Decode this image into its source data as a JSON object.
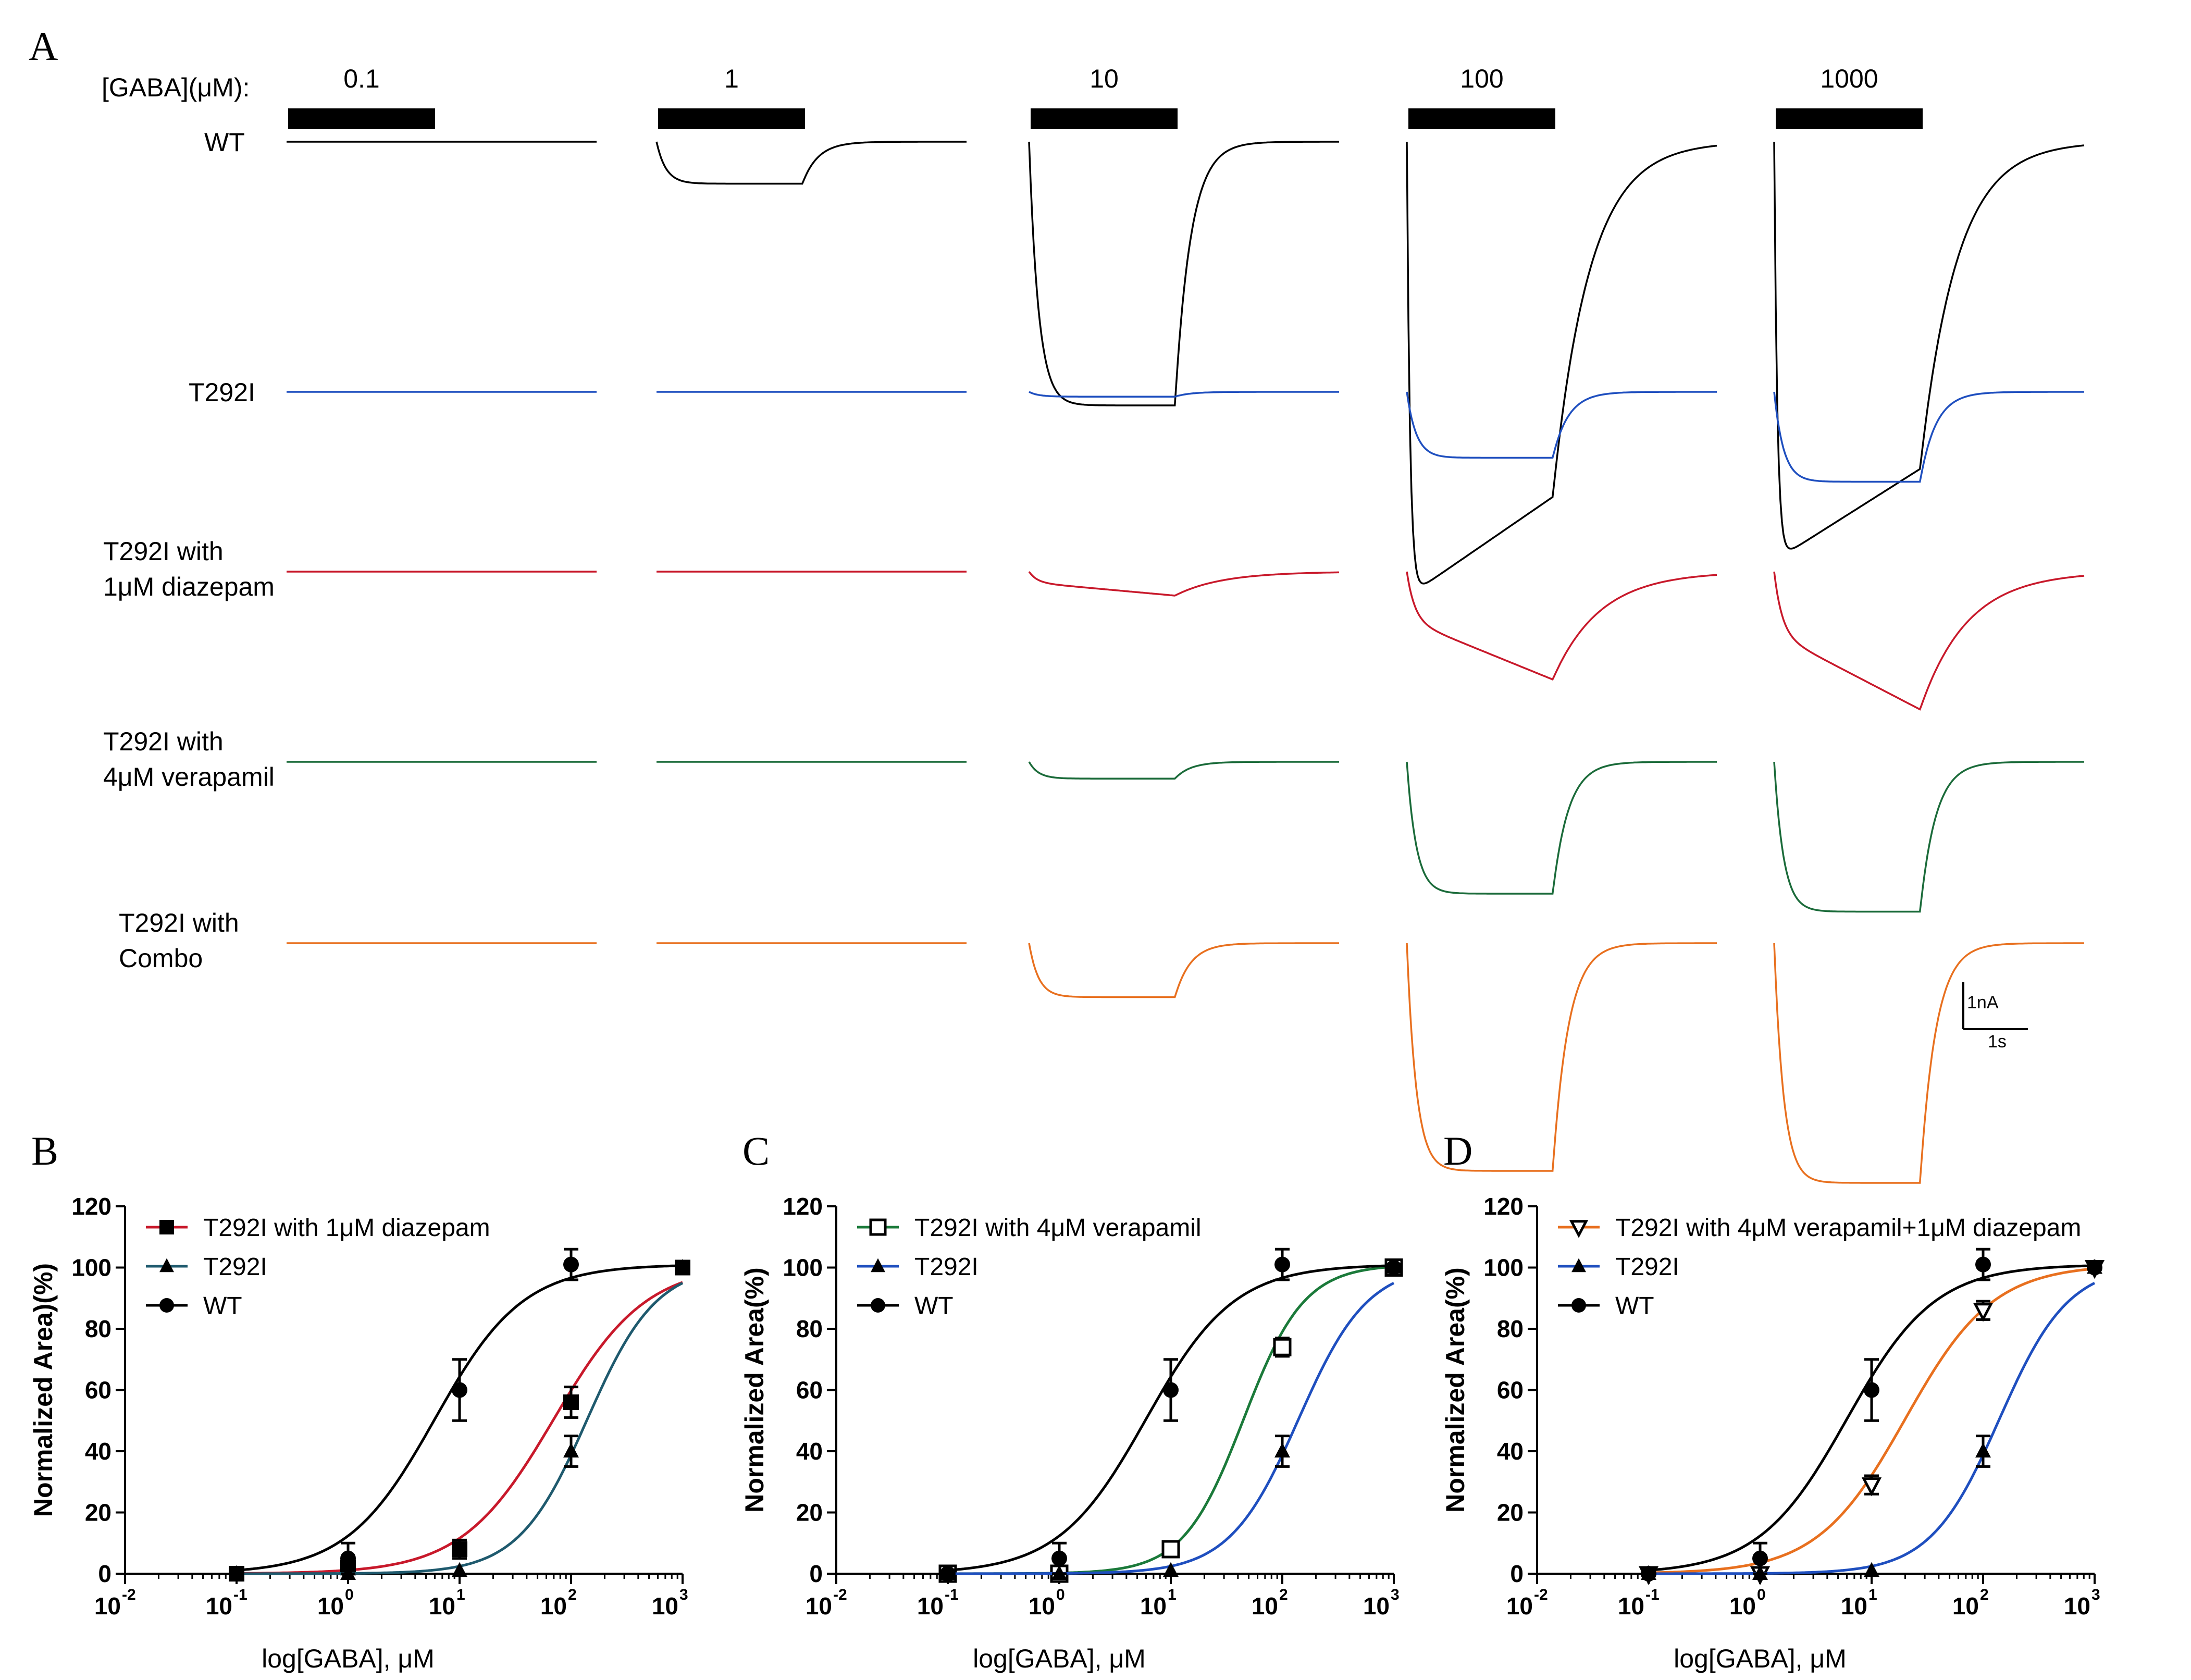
{
  "panel_a": {
    "letter": "A",
    "conc_title": "[GABA](μM):",
    "concentrations": [
      "0.1",
      "1",
      "10",
      "100",
      "1000"
    ],
    "rows": [
      {
        "lines": [
          "WT"
        ],
        "color": "#000000",
        "amps": [
          0,
          0.035,
          0.22,
          0.38,
          0.35
        ],
        "kind": [
          "flat",
          "step",
          "step",
          "peak",
          "peak"
        ]
      },
      {
        "lines": [
          "T292I"
        ],
        "color": "#1f4fbf",
        "amps": [
          0,
          0,
          0.004,
          0.055,
          0.075
        ],
        "kind": [
          "flat",
          "flat",
          "step",
          "step",
          "step"
        ]
      },
      {
        "lines": [
          "T292I with",
          "1μM diazepam"
        ],
        "color": "#c8192b",
        "amps": [
          0,
          0,
          0.02,
          0.09,
          0.115
        ],
        "kind": [
          "flat",
          "flat",
          "slow",
          "slow",
          "slow"
        ]
      },
      {
        "lines": [
          "T292I with",
          "4μM verapamil"
        ],
        "color": "#1b6b3a",
        "amps": [
          0,
          0,
          0.014,
          0.11,
          0.125
        ],
        "kind": [
          "flat",
          "flat",
          "step",
          "step",
          "step"
        ]
      },
      {
        "lines": [
          "T292I with",
          "Combo"
        ],
        "color": "#e8701f",
        "amps": [
          0,
          0,
          0.045,
          0.19,
          0.2
        ],
        "kind": [
          "flat",
          "flat",
          "step",
          "step",
          "step"
        ]
      }
    ],
    "scale": {
      "current": "1nA",
      "time": "1s"
    }
  },
  "chart_data": [
    {
      "type": "scatter",
      "letter": "B",
      "xlabel": "log[GABA], μM",
      "ylabel": "Normalized  Area)(%)",
      "x_log_range": [
        -2,
        3
      ],
      "ylim": [
        0,
        120
      ],
      "y_ticks": [
        0,
        20,
        40,
        60,
        80,
        100,
        120
      ],
      "x_tick_base": "10",
      "x_tick_exponents": [
        "-2",
        "-1",
        "0",
        "1",
        "2",
        "3"
      ],
      "legend_position": "top-left",
      "series": [
        {
          "name": "T292I with 1μM diazepam",
          "marker": "square",
          "color": "#c8192b",
          "x": [
            0.1,
            1,
            10,
            100,
            1000
          ],
          "y": [
            0,
            2,
            8,
            56,
            100
          ],
          "err": [
            1,
            2,
            3,
            5,
            1
          ],
          "ec50": 70,
          "hill": 1.05
        },
        {
          "name": "T292I",
          "marker": "triangle",
          "color": "#1f5a6e",
          "x": [
            0.1,
            1,
            10,
            100,
            1000
          ],
          "y": [
            0,
            0,
            1,
            40,
            100
          ],
          "err": [
            0.5,
            0.5,
            1,
            5,
            1
          ],
          "ec50": 140,
          "hill": 1.4
        },
        {
          "name": "WT",
          "marker": "circle",
          "color": "#000000",
          "x": [
            0.1,
            1,
            10,
            100,
            1000
          ],
          "y": [
            0,
            5,
            60,
            101,
            100
          ],
          "err": [
            1,
            5,
            10,
            5,
            1
          ],
          "ec50": 6,
          "hill": 1.1
        }
      ]
    },
    {
      "type": "scatter",
      "letter": "C",
      "xlabel": "log[GABA], μM",
      "ylabel": "Normalized  Area(%)",
      "x_log_range": [
        -2,
        3
      ],
      "ylim": [
        0,
        120
      ],
      "y_ticks": [
        0,
        20,
        40,
        60,
        80,
        100,
        120
      ],
      "x_tick_base": "10",
      "x_tick_exponents": [
        "-2",
        "-1",
        "0",
        "1",
        "2",
        "3"
      ],
      "legend_position": "top-left",
      "series": [
        {
          "name": "T292I with 4μM verapamil",
          "marker": "open-square",
          "color": "#1b7a3a",
          "x": [
            0.1,
            1,
            10,
            100,
            1000
          ],
          "y": [
            0,
            0,
            8,
            74,
            100
          ],
          "err": [
            0.5,
            0.5,
            2,
            3,
            1
          ],
          "ec50": 45,
          "hill": 1.6
        },
        {
          "name": "T292I",
          "marker": "triangle",
          "color": "#1f4fbf",
          "x": [
            0.1,
            1,
            10,
            100,
            1000
          ],
          "y": [
            0,
            0,
            1,
            40,
            100
          ],
          "err": [
            0.5,
            0.5,
            1,
            5,
            1
          ],
          "ec50": 140,
          "hill": 1.4
        },
        {
          "name": "WT",
          "marker": "circle",
          "color": "#000000",
          "x": [
            0.1,
            1,
            10,
            100,
            1000
          ],
          "y": [
            0,
            5,
            60,
            101,
            100
          ],
          "err": [
            1,
            5,
            10,
            5,
            1
          ],
          "ec50": 6,
          "hill": 1.1
        }
      ]
    },
    {
      "type": "scatter",
      "letter": "D",
      "xlabel": "log[GABA], μM",
      "ylabel": "Normalized  Area(%)",
      "x_log_range": [
        -2,
        3
      ],
      "ylim": [
        0,
        120
      ],
      "y_ticks": [
        0,
        20,
        40,
        60,
        80,
        100,
        120
      ],
      "x_tick_base": "10",
      "x_tick_exponents": [
        "-2",
        "-1",
        "0",
        "1",
        "2",
        "3"
      ],
      "legend_position": "top-left",
      "series": [
        {
          "name": "T292I with 4μM verapamil+1μM diazepam",
          "marker": "open-triangle-down",
          "color": "#e8701f",
          "x": [
            0.1,
            1,
            10,
            100,
            1000
          ],
          "y": [
            0,
            0,
            29,
            86,
            100
          ],
          "err": [
            0.5,
            0.5,
            3,
            3,
            1
          ],
          "ec50": 20,
          "hill": 1.1
        },
        {
          "name": "T292I",
          "marker": "triangle",
          "color": "#1f4fbf",
          "x": [
            0.1,
            1,
            10,
            100,
            1000
          ],
          "y": [
            0,
            0,
            1,
            40,
            100
          ],
          "err": [
            0.5,
            0.5,
            1,
            5,
            1
          ],
          "ec50": 140,
          "hill": 1.4
        },
        {
          "name": "WT",
          "marker": "circle",
          "color": "#000000",
          "x": [
            0.1,
            1,
            10,
            100,
            1000
          ],
          "y": [
            0,
            5,
            60,
            101,
            100
          ],
          "err": [
            1,
            5,
            10,
            5,
            1
          ],
          "ec50": 6,
          "hill": 1.1
        }
      ]
    }
  ]
}
